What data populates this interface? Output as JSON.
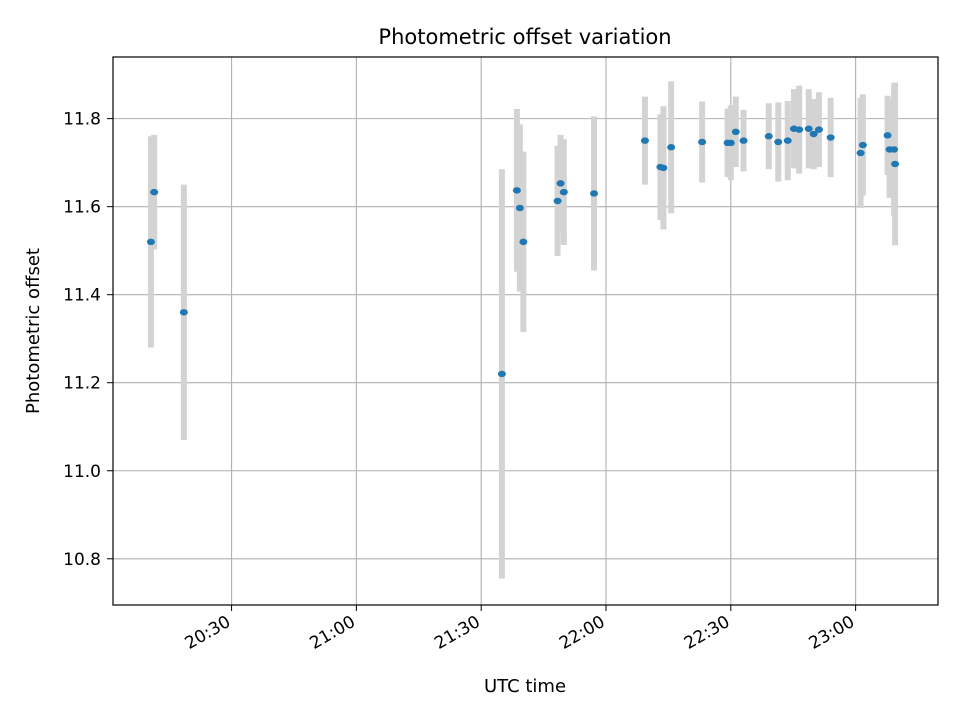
{
  "chart_data": {
    "type": "scatter",
    "title": "Photometric offset variation",
    "xlabel": "UTC time",
    "ylabel": "Photometric offset",
    "grid": true,
    "xlim": [
      20.025,
      23.33
    ],
    "ylim": [
      10.695,
      11.94
    ],
    "x_unit": "decimal hours UTC",
    "xticks": [
      {
        "value": 20.5,
        "label": "20:30"
      },
      {
        "value": 21.0,
        "label": "21:00"
      },
      {
        "value": 21.5,
        "label": "21:30"
      },
      {
        "value": 22.0,
        "label": "22:00"
      },
      {
        "value": 22.5,
        "label": "22:30"
      },
      {
        "value": 23.0,
        "label": "23:00"
      }
    ],
    "yticks": [
      {
        "value": 10.8,
        "label": "10.8"
      },
      {
        "value": 11.0,
        "label": "11.0"
      },
      {
        "value": 11.2,
        "label": "11.2"
      },
      {
        "value": 11.4,
        "label": "11.4"
      },
      {
        "value": 11.6,
        "label": "11.6"
      },
      {
        "value": 11.8,
        "label": "11.8"
      }
    ],
    "series": [
      {
        "name": "offset",
        "marker_color": "#1f77b4",
        "errorbar_color": "#d3d3d3",
        "points": [
          {
            "x": 20.177,
            "y": 11.52,
            "err": 0.24
          },
          {
            "x": 20.19,
            "y": 11.633,
            "err": 0.13
          },
          {
            "x": 20.309,
            "y": 11.36,
            "err": 0.29
          },
          {
            "x": 21.583,
            "y": 11.22,
            "err": 0.465
          },
          {
            "x": 21.643,
            "y": 11.637,
            "err": 0.185
          },
          {
            "x": 21.655,
            "y": 11.597,
            "err": 0.19
          },
          {
            "x": 21.669,
            "y": 11.52,
            "err": 0.205
          },
          {
            "x": 21.806,
            "y": 11.613,
            "err": 0.125
          },
          {
            "x": 21.818,
            "y": 11.653,
            "err": 0.11
          },
          {
            "x": 21.831,
            "y": 11.633,
            "err": 0.12
          },
          {
            "x": 21.952,
            "y": 11.63,
            "err": 0.175
          },
          {
            "x": 22.156,
            "y": 11.75,
            "err": 0.1
          },
          {
            "x": 22.218,
            "y": 11.69,
            "err": 0.12
          },
          {
            "x": 22.23,
            "y": 11.688,
            "err": 0.14
          },
          {
            "x": 22.261,
            "y": 11.735,
            "err": 0.15
          },
          {
            "x": 22.385,
            "y": 11.747,
            "err": 0.092
          },
          {
            "x": 22.487,
            "y": 11.745,
            "err": 0.078
          },
          {
            "x": 22.5,
            "y": 11.745,
            "err": 0.085
          },
          {
            "x": 22.52,
            "y": 11.77,
            "err": 0.08
          },
          {
            "x": 22.551,
            "y": 11.75,
            "err": 0.07
          },
          {
            "x": 22.652,
            "y": 11.76,
            "err": 0.075
          },
          {
            "x": 22.69,
            "y": 11.747,
            "err": 0.09
          },
          {
            "x": 22.728,
            "y": 11.75,
            "err": 0.09
          },
          {
            "x": 22.753,
            "y": 11.777,
            "err": 0.09
          },
          {
            "x": 22.774,
            "y": 11.775,
            "err": 0.1
          },
          {
            "x": 22.812,
            "y": 11.777,
            "err": 0.09
          },
          {
            "x": 22.832,
            "y": 11.765,
            "err": 0.08
          },
          {
            "x": 22.853,
            "y": 11.775,
            "err": 0.085
          },
          {
            "x": 22.9,
            "y": 11.757,
            "err": 0.09
          },
          {
            "x": 23.02,
            "y": 11.722,
            "err": 0.125
          },
          {
            "x": 23.029,
            "y": 11.74,
            "err": 0.115
          },
          {
            "x": 23.128,
            "y": 11.762,
            "err": 0.09
          },
          {
            "x": 23.136,
            "y": 11.73,
            "err": 0.11
          },
          {
            "x": 23.154,
            "y": 11.73,
            "err": 0.15
          },
          {
            "x": 23.158,
            "y": 11.697,
            "err": 0.185
          }
        ]
      }
    ]
  }
}
